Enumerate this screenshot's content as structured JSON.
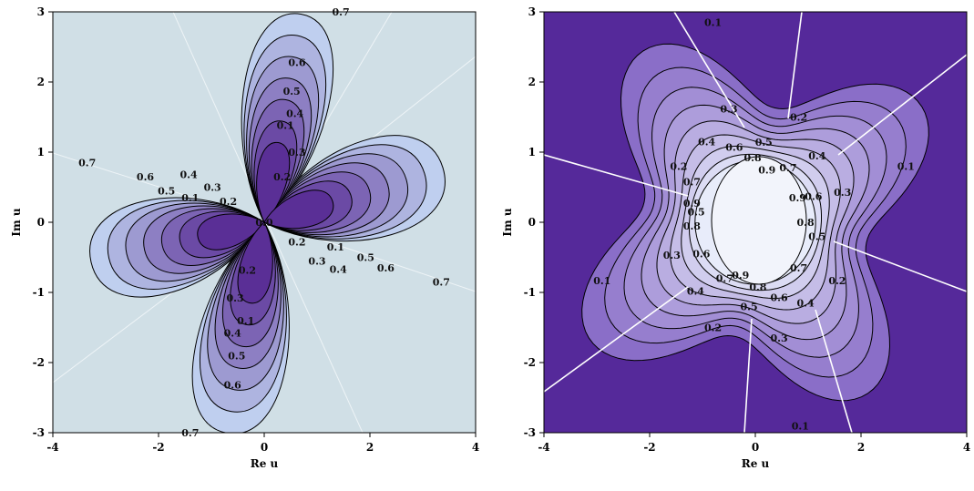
{
  "chart_data": [
    {
      "type": "contour",
      "xlabel": "Re u",
      "ylabel": "Im u",
      "xlim": [
        -4,
        4
      ],
      "ylim": [
        -3,
        3
      ],
      "x_ticks": [
        "-4",
        "-2",
        "0",
        "2",
        "4"
      ],
      "y_ticks": [
        "3",
        "2",
        "1",
        "0",
        "-1",
        "-2",
        "-3"
      ],
      "contour_levels": [
        0.1,
        0.2,
        0.3,
        0.4,
        0.5,
        0.6,
        0.7
      ],
      "shape": "four-lobed",
      "colors": {
        "background": "#d0dfe6",
        "outer": "#bfcfef",
        "inner": "#5a2f96",
        "line": "#000000"
      },
      "labels": [
        {
          "text": "0.7",
          "x": 1.45,
          "y": 3.0
        },
        {
          "text": "0.6",
          "x": 0.62,
          "y": 2.28
        },
        {
          "text": "0.5",
          "x": 0.52,
          "y": 1.87
        },
        {
          "text": "0.4",
          "x": 0.58,
          "y": 1.55
        },
        {
          "text": "0.3",
          "x": 0.62,
          "y": 1.0
        },
        {
          "text": "0.1",
          "x": 0.4,
          "y": 1.38
        },
        {
          "text": "0.2",
          "x": 0.34,
          "y": 0.65
        },
        {
          "text": "0.7",
          "x": -3.35,
          "y": 0.85
        },
        {
          "text": "0.6",
          "x": -2.25,
          "y": 0.65
        },
        {
          "text": "0.4",
          "x": -1.43,
          "y": 0.68
        },
        {
          "text": "0.5",
          "x": -1.85,
          "y": 0.45
        },
        {
          "text": "0.3",
          "x": -0.98,
          "y": 0.5
        },
        {
          "text": "0.1",
          "x": -1.4,
          "y": 0.35
        },
        {
          "text": "0.2",
          "x": -0.68,
          "y": 0.3
        },
        {
          "text": "0.0",
          "x": 0.0,
          "y": 0.0
        },
        {
          "text": "0.2",
          "x": 0.62,
          "y": -0.28
        },
        {
          "text": "0.1",
          "x": 1.35,
          "y": -0.35
        },
        {
          "text": "0.3",
          "x": 1.0,
          "y": -0.55
        },
        {
          "text": "0.4",
          "x": 1.4,
          "y": -0.67
        },
        {
          "text": "0.5",
          "x": 1.92,
          "y": -0.5
        },
        {
          "text": "0.6",
          "x": 2.3,
          "y": -0.65
        },
        {
          "text": "0.7",
          "x": 3.35,
          "y": -0.85
        },
        {
          "text": "0.2",
          "x": -0.32,
          "y": -0.68
        },
        {
          "text": "0.3",
          "x": -0.55,
          "y": -1.08
        },
        {
          "text": "0.1",
          "x": -0.35,
          "y": -1.4
        },
        {
          "text": "0.4",
          "x": -0.6,
          "y": -1.58
        },
        {
          "text": "0.5",
          "x": -0.52,
          "y": -1.9
        },
        {
          "text": "0.6",
          "x": -0.6,
          "y": -2.32
        },
        {
          "text": "0.7",
          "x": -1.4,
          "y": -3.0
        }
      ]
    },
    {
      "type": "contour",
      "xlabel": "Re u",
      "ylabel": "Im u",
      "xlim": [
        -4,
        4
      ],
      "ylim": [
        -3,
        3
      ],
      "x_ticks": [
        "-4",
        "-2",
        "0",
        "2",
        "4"
      ],
      "y_ticks": [
        "3",
        "2",
        "1",
        "0",
        "-1",
        "-2",
        "-3"
      ],
      "contour_levels": [
        0.1,
        0.2,
        0.3,
        0.4,
        0.5,
        0.6,
        0.7,
        0.8,
        0.9
      ],
      "shape": "four-lobed with central hole",
      "colors": {
        "background": "#55299a",
        "outer": "#8a6ec8",
        "inner": "#e8ecfa",
        "line": "#000000"
      },
      "labels": [
        {
          "text": "0.1",
          "x": -0.8,
          "y": 2.85
        },
        {
          "text": "0.2",
          "x": 0.82,
          "y": 1.5
        },
        {
          "text": "0.3",
          "x": -0.5,
          "y": 1.62
        },
        {
          "text": "0.4",
          "x": -0.92,
          "y": 1.15
        },
        {
          "text": "0.6",
          "x": -0.4,
          "y": 1.07
        },
        {
          "text": "0.5",
          "x": 0.16,
          "y": 1.14
        },
        {
          "text": "0.8",
          "x": -0.05,
          "y": 0.92
        },
        {
          "text": "0.4",
          "x": 1.17,
          "y": 0.95
        },
        {
          "text": "0.2",
          "x": -1.45,
          "y": 0.8
        },
        {
          "text": "0.9",
          "x": 0.22,
          "y": 0.75
        },
        {
          "text": "0.7",
          "x": 0.62,
          "y": 0.78
        },
        {
          "text": "0.1",
          "x": 2.85,
          "y": 0.8
        },
        {
          "text": "0.7",
          "x": -1.2,
          "y": 0.58
        },
        {
          "text": "0.9",
          "x": 0.8,
          "y": 0.35
        },
        {
          "text": "0.6",
          "x": 1.1,
          "y": 0.37
        },
        {
          "text": "0.3",
          "x": 1.65,
          "y": 0.43
        },
        {
          "text": "0.9",
          "x": -1.2,
          "y": 0.27
        },
        {
          "text": "0.5",
          "x": -1.12,
          "y": 0.15
        },
        {
          "text": "0.8",
          "x": -1.2,
          "y": -0.05
        },
        {
          "text": "0.8",
          "x": 0.95,
          "y": 0.0
        },
        {
          "text": "0.5",
          "x": 1.17,
          "y": -0.2
        },
        {
          "text": "0.6",
          "x": -1.02,
          "y": -0.45
        },
        {
          "text": "0.3",
          "x": -1.58,
          "y": -0.47
        },
        {
          "text": "0.7",
          "x": 0.82,
          "y": -0.65
        },
        {
          "text": "0.2",
          "x": 1.55,
          "y": -0.83
        },
        {
          "text": "0.1",
          "x": -2.9,
          "y": -0.83
        },
        {
          "text": "0.7",
          "x": -0.58,
          "y": -0.8
        },
        {
          "text": "0.9",
          "x": -0.28,
          "y": -0.75
        },
        {
          "text": "0.8",
          "x": 0.05,
          "y": -0.92
        },
        {
          "text": "0.4",
          "x": -1.13,
          "y": -0.98
        },
        {
          "text": "0.6",
          "x": 0.45,
          "y": -1.07
        },
        {
          "text": "0.4",
          "x": 0.95,
          "y": -1.15
        },
        {
          "text": "0.5",
          "x": -0.12,
          "y": -1.2
        },
        {
          "text": "0.2",
          "x": -0.8,
          "y": -1.5
        },
        {
          "text": "0.3",
          "x": 0.45,
          "y": -1.65
        },
        {
          "text": "0.1",
          "x": 0.85,
          "y": -2.9
        }
      ]
    }
  ]
}
